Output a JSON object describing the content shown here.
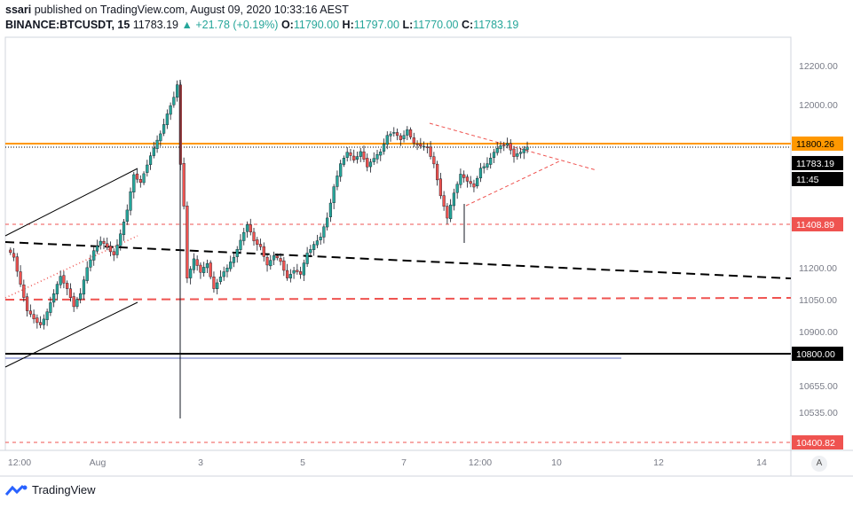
{
  "header": {
    "author": "ssari",
    "published_text": "published on TradingView.com, August 09, 2020 10:33:16 AEST",
    "symbol": "BINANCE:BTCUSDT, 15",
    "last": "11783.19",
    "change": "+21.78 (+0.19%)",
    "o_label": "O:",
    "o_value": "11790.00",
    "h_label": "H:",
    "h_value": "11797.00",
    "l_label": "L:",
    "l_value": "11770.00",
    "c_label": "C:",
    "c_value": "11783.19"
  },
  "footer": {
    "brand": "TradingView",
    "auto_scale": "A"
  },
  "colors": {
    "up": "#26a69a",
    "down": "#ef5350",
    "orange": "#ff9800",
    "red": "#ef5350",
    "blue": "#5b6bc0",
    "black": "#000000"
  },
  "chart_data": {
    "type": "candlestick",
    "symbol": "BINANCE:BTCUSDT",
    "interval": "15",
    "y_ticks": [
      "12200.00",
      "12000.00",
      "11200.00",
      "11050.00",
      "10900.00",
      "10655.00",
      "10535.00"
    ],
    "x_ticks": [
      "12:00",
      "Aug",
      "3",
      "5",
      "7",
      "12:00",
      "10",
      "12",
      "14"
    ],
    "ylim": [
      10390,
      12280
    ],
    "price_labels": [
      {
        "value": 11800.26,
        "text": "11800.26",
        "kind": "orange-line"
      },
      {
        "value": 11783.19,
        "text": "11783.19",
        "kind": "last-price"
      },
      {
        "text": "11:45",
        "kind": "countdown"
      },
      {
        "value": 11408.89,
        "text": "11408.89",
        "kind": "red-dashed"
      },
      {
        "value": 10800.0,
        "text": "10800.00",
        "kind": "black-line"
      },
      {
        "value": 10400.82,
        "text": "10400.82",
        "kind": "red-dashed"
      }
    ],
    "price_path": [
      [
        0,
        11290
      ],
      [
        2,
        11250
      ],
      [
        4,
        11120
      ],
      [
        6,
        11000
      ],
      [
        8,
        10960
      ],
      [
        10,
        10930
      ],
      [
        12,
        10990
      ],
      [
        14,
        11080
      ],
      [
        16,
        11160
      ],
      [
        18,
        11100
      ],
      [
        20,
        11020
      ],
      [
        22,
        11080
      ],
      [
        24,
        11200
      ],
      [
        26,
        11280
      ],
      [
        28,
        11330
      ],
      [
        30,
        11300
      ],
      [
        32,
        11260
      ],
      [
        34,
        11360
      ],
      [
        36,
        11480
      ],
      [
        38,
        11650
      ],
      [
        40,
        11610
      ],
      [
        42,
        11700
      ],
      [
        44,
        11780
      ],
      [
        46,
        11850
      ],
      [
        48,
        11950
      ],
      [
        50,
        12040
      ],
      [
        51,
        12100
      ],
      [
        52,
        11700
      ],
      [
        53,
        11500
      ],
      [
        54,
        11150
      ],
      [
        56,
        11240
      ],
      [
        58,
        11180
      ],
      [
        60,
        11220
      ],
      [
        62,
        11100
      ],
      [
        64,
        11160
      ],
      [
        66,
        11200
      ],
      [
        68,
        11250
      ],
      [
        70,
        11330
      ],
      [
        72,
        11410
      ],
      [
        74,
        11330
      ],
      [
        76,
        11300
      ],
      [
        78,
        11210
      ],
      [
        80,
        11260
      ],
      [
        82,
        11230
      ],
      [
        84,
        11150
      ],
      [
        86,
        11190
      ],
      [
        88,
        11170
      ],
      [
        90,
        11270
      ],
      [
        92,
        11310
      ],
      [
        94,
        11350
      ],
      [
        96,
        11440
      ],
      [
        98,
        11590
      ],
      [
        100,
        11700
      ],
      [
        102,
        11760
      ],
      [
        104,
        11720
      ],
      [
        106,
        11760
      ],
      [
        108,
        11690
      ],
      [
        110,
        11730
      ],
      [
        112,
        11760
      ],
      [
        114,
        11840
      ],
      [
        116,
        11860
      ],
      [
        118,
        11820
      ],
      [
        120,
        11870
      ],
      [
        122,
        11800
      ],
      [
        124,
        11790
      ],
      [
        126,
        11780
      ],
      [
        128,
        11700
      ],
      [
        130,
        11550
      ],
      [
        132,
        11440
      ],
      [
        134,
        11560
      ],
      [
        136,
        11650
      ],
      [
        138,
        11620
      ],
      [
        140,
        11590
      ],
      [
        142,
        11680
      ],
      [
        144,
        11700
      ],
      [
        146,
        11760
      ],
      [
        148,
        11790
      ],
      [
        150,
        11800
      ],
      [
        152,
        11740
      ],
      [
        154,
        11760
      ],
      [
        156,
        11783
      ]
    ],
    "drawings": [
      {
        "kind": "horizontal",
        "value": 11800.26,
        "color": "orange"
      },
      {
        "kind": "horizontal-dotted",
        "value": 11783.19,
        "color": "black"
      },
      {
        "kind": "horizontal-dashed",
        "value": 11408.89,
        "color": "red"
      },
      {
        "kind": "horizontal",
        "value": 10800.0,
        "color": "black"
      },
      {
        "kind": "horizontal",
        "value": 10780.0,
        "color": "blue"
      },
      {
        "kind": "horizontal-dashed",
        "value": 10400.82,
        "color": "red"
      }
    ]
  }
}
